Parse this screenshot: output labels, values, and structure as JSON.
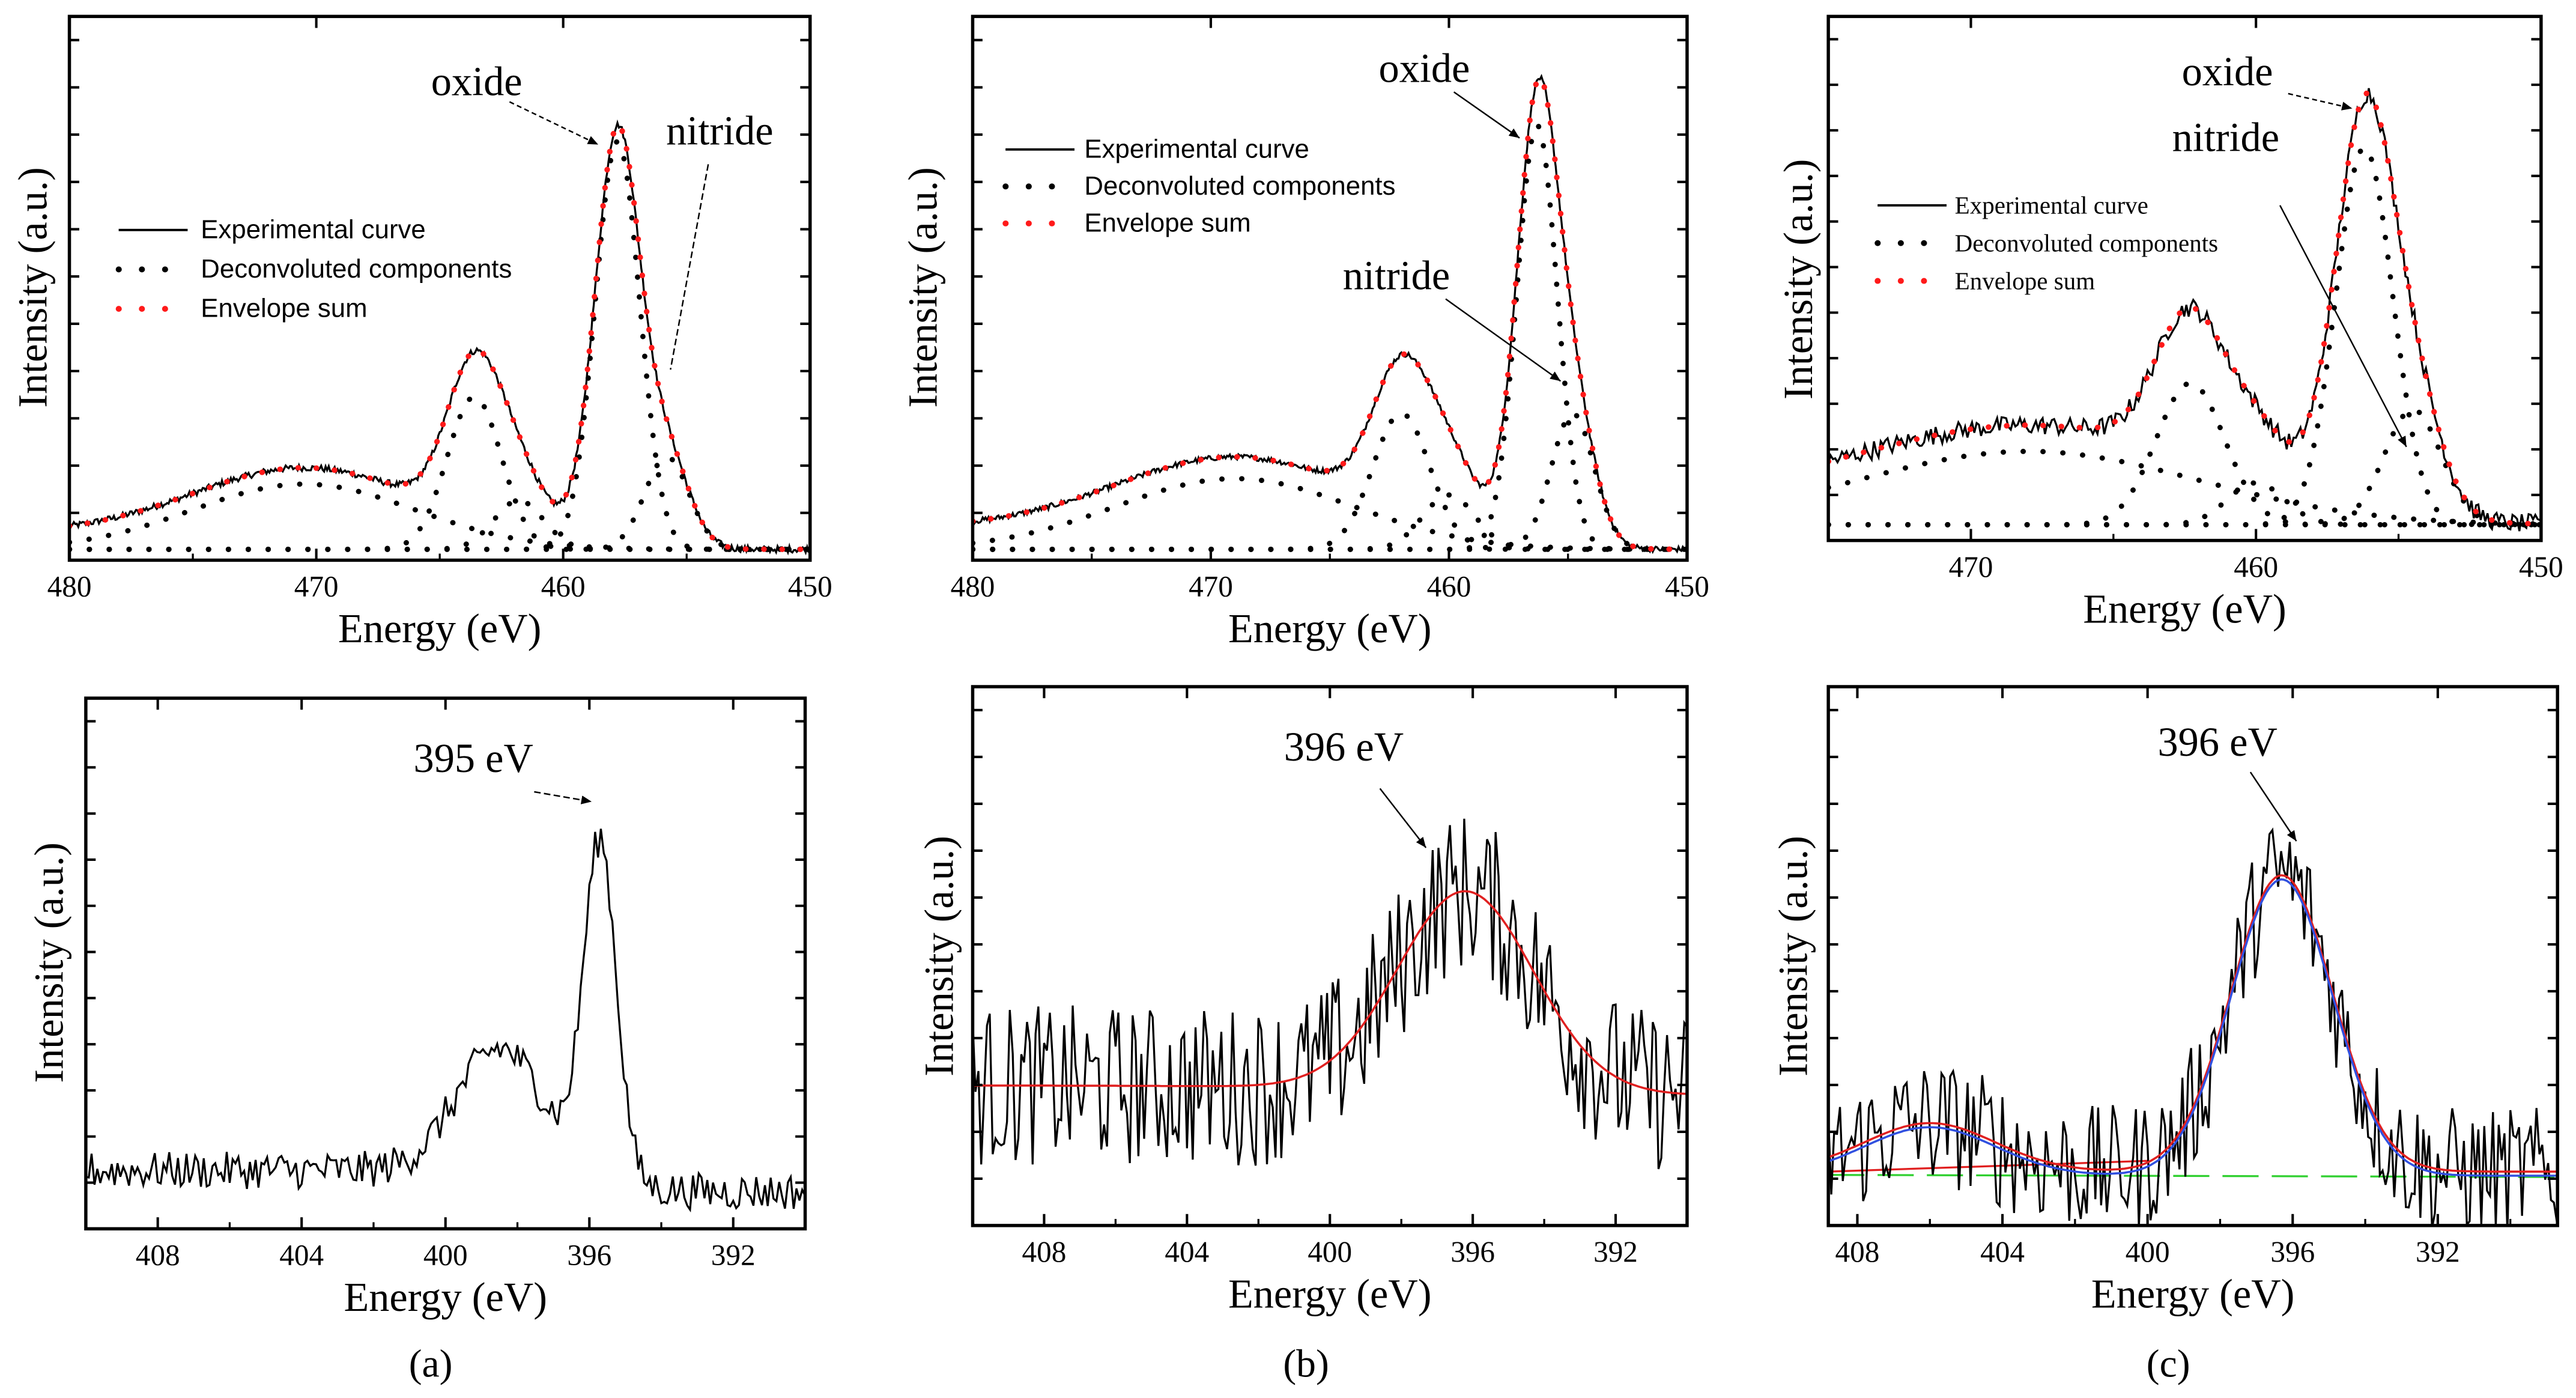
{
  "panel_labels": [
    "(a)",
    "(b)",
    "(c)"
  ],
  "chart_data": [
    {
      "id": "a-top",
      "type": "line",
      "title": "",
      "xlabel": "Energy (eV)",
      "ylabel": "Intensity (a.u.)",
      "xlim": [
        480,
        450
      ],
      "ylim": [
        0,
        1
      ],
      "xticks": [
        480,
        470,
        460,
        450
      ],
      "xtick_labels": [
        "480",
        "470",
        "460",
        "450"
      ],
      "legend": [
        "Experimental curve",
        "Deconvoluted components",
        "Envelope sum"
      ],
      "legend_placement": "center-left",
      "annotations": [
        "oxide",
        "nitride"
      ],
      "background": {
        "offset": 0.02,
        "step": 0.03,
        "step_center": 458,
        "step_width": 1
      },
      "components": [
        {
          "center": 470.5,
          "height": 0.12,
          "sigma": 4.5
        },
        {
          "center": 463.6,
          "height": 0.28,
          "sigma": 1.1
        },
        {
          "center": 461.8,
          "height": 0.09,
          "sigma": 1.0
        },
        {
          "center": 457.8,
          "height": 0.75,
          "sigma": 0.9
        },
        {
          "center": 455.8,
          "height": 0.17,
          "sigma": 0.9
        }
      ],
      "noise": 0.006,
      "show_components": true,
      "show_envelope": true
    },
    {
      "id": "b-top",
      "type": "line",
      "title": "",
      "xlabel": "Energy (eV)",
      "ylabel": "Intensity (a.u.)",
      "xlim": [
        480,
        450
      ],
      "ylim": [
        0,
        1
      ],
      "xticks": [
        480,
        470,
        460,
        450
      ],
      "xtick_labels": [
        "480",
        "470",
        "460",
        "450"
      ],
      "legend": [
        "Experimental curve",
        "Deconvoluted components",
        "Envelope sum"
      ],
      "legend_placement": "top-left",
      "annotations": [
        "oxide",
        "nitride"
      ],
      "background": {
        "offset": 0.02,
        "step": 0.04,
        "step_center": 457,
        "step_width": 1
      },
      "components": [
        {
          "center": 469,
          "height": 0.13,
          "sigma": 5
        },
        {
          "center": 462,
          "height": 0.25,
          "sigma": 1.2
        },
        {
          "center": 460,
          "height": 0.1,
          "sigma": 1.1
        },
        {
          "center": 456.3,
          "height": 0.78,
          "sigma": 0.85
        },
        {
          "center": 454.8,
          "height": 0.25,
          "sigma": 0.9
        }
      ],
      "noise": 0.005,
      "show_components": true,
      "show_envelope": true
    },
    {
      "id": "c-top",
      "type": "line",
      "title": "",
      "xlabel": "Energy (eV)",
      "ylabel": "Intensity (a.u.)",
      "xlim": [
        475,
        450
      ],
      "ylim": [
        0,
        1
      ],
      "xticks": [
        470,
        460,
        450
      ],
      "xtick_labels": [
        "470",
        "460",
        "450"
      ],
      "legend": [
        "Experimental curve",
        "Deconvoluted components",
        "Envelope sum"
      ],
      "legend_placement": "center-left",
      "annotations": [
        "oxide",
        "nitride"
      ],
      "background": {
        "offset": 0.03,
        "step": 0.05,
        "step_center": 456,
        "step_width": 1
      },
      "components": [
        {
          "center": 468,
          "height": 0.14,
          "sigma": 6
        },
        {
          "center": 462.3,
          "height": 0.27,
          "sigma": 1.2
        },
        {
          "center": 460,
          "height": 0.08,
          "sigma": 1.0
        },
        {
          "center": 456.2,
          "height": 0.72,
          "sigma": 1.0
        },
        {
          "center": 454.5,
          "height": 0.22,
          "sigma": 1.0
        }
      ],
      "noise": 0.018,
      "show_components": true,
      "show_envelope": true
    },
    {
      "id": "a-bottom",
      "type": "line",
      "title": "",
      "xlabel": "Energy (eV)",
      "ylabel": "Intensity (a.u.)",
      "xlim": [
        410,
        390
      ],
      "ylim": [
        0,
        1
      ],
      "xticks": [
        408,
        404,
        400,
        396,
        392
      ],
      "xtick_labels": [
        "408",
        "404",
        "400",
        "396",
        "392"
      ],
      "annotations": [
        "395 eV"
      ],
      "background": {
        "offset": 0.07,
        "step": 0.04,
        "step_center": 395,
        "step_width": 0.5
      },
      "components": [
        {
          "center": 395.7,
          "height": 0.62,
          "sigma": 0.45
        },
        {
          "center": 398.5,
          "height": 0.23,
          "sigma": 1.2
        }
      ],
      "noise": 0.035,
      "show_components": false,
      "show_envelope": false
    },
    {
      "id": "b-bottom",
      "type": "line",
      "title": "",
      "xlabel": "Energy (eV)",
      "ylabel": "Intensity (a.u.)",
      "xlim": [
        410,
        390
      ],
      "ylim": [
        0,
        1
      ],
      "xticks": [
        408,
        404,
        400,
        396,
        392
      ],
      "xtick_labels": [
        "408",
        "404",
        "400",
        "396",
        "392"
      ],
      "annotations": [
        "396 eV"
      ],
      "background": {
        "offset": 0.24,
        "step": 0.02,
        "step_center": 396,
        "step_width": 3
      },
      "components": [
        {
          "center": 396.2,
          "height": 0.37,
          "sigma": 1.9
        }
      ],
      "noise": 0.15,
      "show_components": false,
      "show_envelope": false,
      "fit_lines": [
        {
          "name": "fit",
          "color": "#e02020"
        }
      ]
    },
    {
      "id": "c-bottom",
      "type": "line",
      "title": "",
      "xlabel": "Energy (eV)",
      "ylabel": "Intensity (a.u.)",
      "xlim": [
        408.8,
        388.7
      ],
      "ylim": [
        0,
        1
      ],
      "xticks": [
        408,
        404,
        400,
        396,
        392
      ],
      "xtick_labels": [
        "408",
        "404",
        "400",
        "396",
        "392"
      ],
      "annotations": [
        "396 eV"
      ],
      "background": {
        "offset": 0.1,
        "step": 0.0,
        "step_center": 396,
        "step_width": 1
      },
      "components": [
        {
          "center": 396.3,
          "height": 0.55,
          "sigma": 1.4
        },
        {
          "center": 406,
          "height": 0.09,
          "sigma": 1.8
        }
      ],
      "noise": 0.12,
      "show_components": false,
      "show_envelope": false,
      "fit_lines": [
        {
          "name": "fit",
          "color": "#e02020"
        },
        {
          "name": "fit-2",
          "color": "#3050e0"
        }
      ],
      "baseline_line": {
        "color": "#30d030",
        "value": 0.1
      }
    }
  ]
}
